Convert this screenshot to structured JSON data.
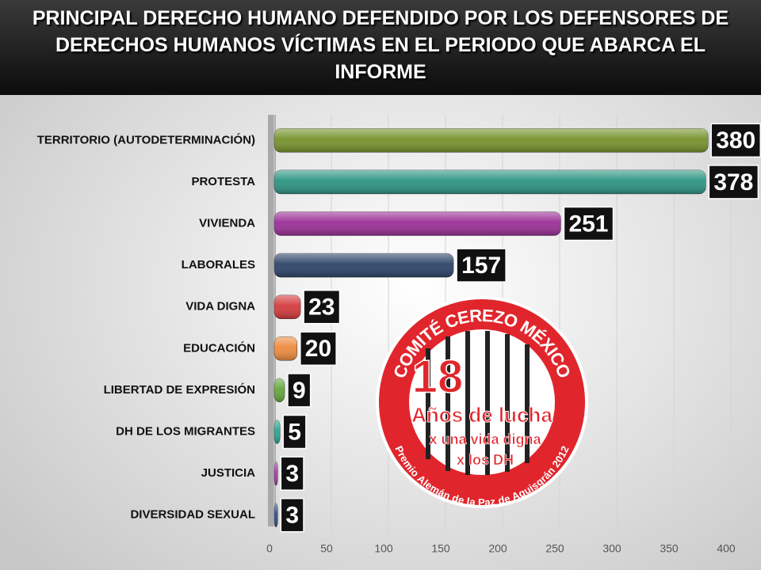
{
  "chart_data": {
    "type": "barh",
    "title": "PRINCIPAL DERECHO HUMANO DEFENDIDO POR LOS DEFENSORES DE DERECHOS HUMANOS VÍCTIMAS EN EL PERIODO QUE ABARCA EL INFORME",
    "categories": [
      "TERRITORIO (AUTODETERMINACIÓN)",
      "PROTESTA",
      "VIVIENDA",
      "LABORALES",
      "VIDA DIGNA",
      "EDUCACIÓN",
      "LIBERTAD DE EXPRESIÓN",
      "DH DE LOS MIGRANTES",
      "JUSTICIA",
      "DIVERSIDAD SEXUAL"
    ],
    "values": [
      380,
      378,
      251,
      157,
      23,
      20,
      9,
      5,
      3,
      3
    ],
    "colors": [
      "#76922c",
      "#2c9482",
      "#9a2f96",
      "#2c4468",
      "#d43a3c",
      "#ee8a3e",
      "#64a83c",
      "#2aa590",
      "#a63aa6",
      "#2f4f8a"
    ],
    "xlim": [
      0,
      400
    ],
    "xticks": [
      0,
      50,
      100,
      150,
      200,
      250,
      300,
      350,
      400
    ],
    "grid": true,
    "annotations": [
      "COMITÉ CEREZO MÉXICO",
      "18",
      "Años de lucha",
      "x una vida digna",
      "x los DH",
      "Premio Alemán de la Paz de Aquisgrán 2012"
    ]
  }
}
